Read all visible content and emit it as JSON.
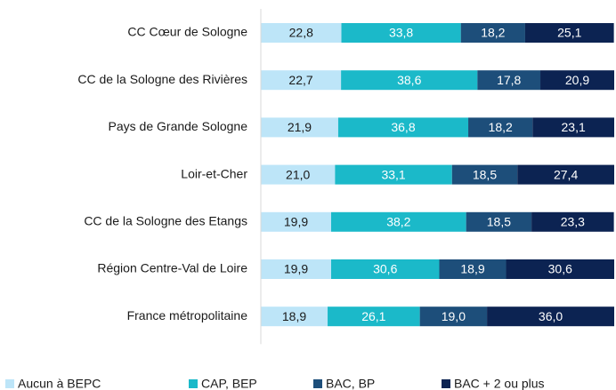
{
  "chart_data": {
    "type": "stacked_barh",
    "categories": [
      "CC Cœur de Sologne",
      "CC de la Sologne des Rivières",
      "Pays de Grande Sologne",
      "Loir-et-Cher",
      "CC de la Sologne des Etangs",
      "Région Centre-Val de Loire",
      "France métropolitaine"
    ],
    "xlim": [
      0,
      100
    ],
    "legend": "bottom",
    "series": [
      {
        "name": "Aucun à BEPC",
        "color": "#bde5f8",
        "label_color": "#1a1a1a",
        "values": [
          22.8,
          22.7,
          21.9,
          21.0,
          19.9,
          19.9,
          18.9
        ],
        "value_labels": [
          "22,8",
          "22,7",
          "21,9",
          "21,0",
          "19,9",
          "19,9",
          "18,9"
        ]
      },
      {
        "name": "CAP, BEP",
        "color": "#1bb9c9",
        "label_color": "#ffffff",
        "values": [
          33.8,
          38.6,
          36.8,
          33.1,
          38.2,
          30.6,
          26.1
        ],
        "value_labels": [
          "33,8",
          "38,6",
          "36,8",
          "33,1",
          "38,2",
          "30,6",
          "26,1"
        ]
      },
      {
        "name": "BAC, BP",
        "color": "#1d4e7a",
        "label_color": "#ffffff",
        "values": [
          18.2,
          17.8,
          18.2,
          18.5,
          18.5,
          18.9,
          19.0
        ],
        "value_labels": [
          "18,2",
          "17,8",
          "18,2",
          "18,5",
          "18,5",
          "18,9",
          "19,0"
        ]
      },
      {
        "name": "BAC + 2 ou plus",
        "color": "#0c2352",
        "label_color": "#ffffff",
        "values": [
          25.1,
          20.9,
          23.1,
          27.4,
          23.3,
          30.6,
          36.0
        ],
        "value_labels": [
          "25,1",
          "20,9",
          "23,1",
          "27,4",
          "23,3",
          "30,6",
          "36,0"
        ]
      }
    ]
  }
}
